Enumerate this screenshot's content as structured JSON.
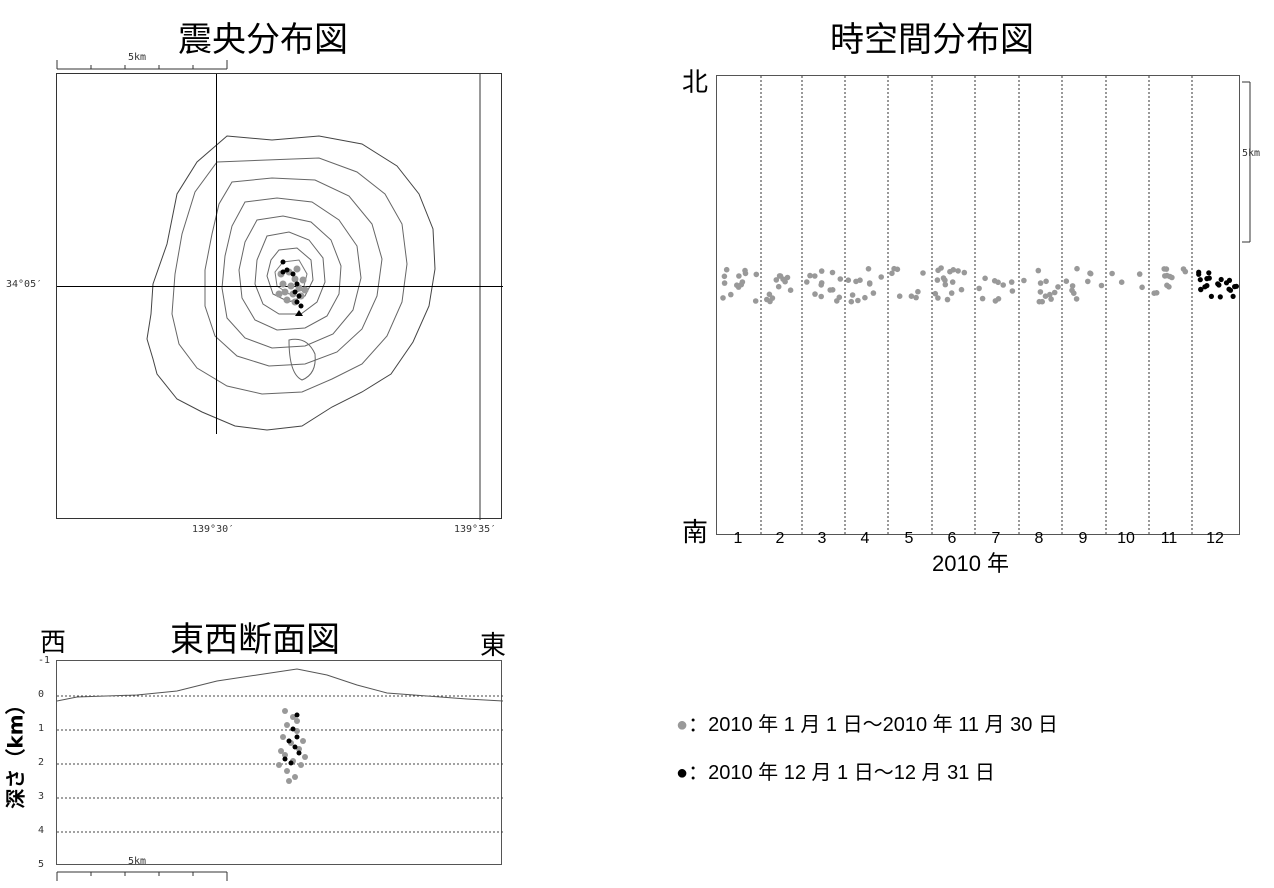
{
  "epicenter_map": {
    "title": "震央分布図",
    "scale_label": "5km",
    "lat_label": "34°05′",
    "lon_labels": [
      "139°30′",
      "139°35′"
    ]
  },
  "spacetime_chart": {
    "title": "時空間分布図",
    "north_label": "北",
    "south_label": "南",
    "scale_label": "5km",
    "year_label": "2010 年",
    "months": [
      "1",
      "2",
      "3",
      "4",
      "5",
      "6",
      "7",
      "8",
      "9",
      "10",
      "11",
      "12"
    ]
  },
  "cross_section": {
    "title": "東西断面図",
    "west_label": "西",
    "east_label": "東",
    "ylabel": "深さ（km）",
    "depth_ticks": [
      "-1",
      "0",
      "1",
      "2",
      "3",
      "4",
      "5"
    ],
    "scale_label": "5km"
  },
  "legend": {
    "gray_symbol": "●",
    "black_symbol": "●",
    "gray_color": "#999999",
    "black_color": "#000000",
    "gray_text": "：2010 年 1 月 1 日～2010 年 11 月 30 日",
    "black_text": "：2010 年 12 月 1 日～12 月 31 日"
  },
  "chart_data": [
    {
      "type": "scatter",
      "title": "時空間分布図",
      "xlabel": "2010 年",
      "categories": [
        "1",
        "2",
        "3",
        "4",
        "5",
        "6",
        "7",
        "8",
        "9",
        "10",
        "11",
        "12"
      ],
      "series": [
        {
          "period": "2010-01-01 to 2010-11-30",
          "color": "#999999",
          "count_month": [
            14,
            12,
            14,
            12,
            8,
            16,
            10,
            12,
            10,
            4,
            12,
            0
          ]
        },
        {
          "period": "2010-12-01 to 2010-12-31",
          "color": "#000000",
          "count_month": [
            0,
            0,
            0,
            0,
            0,
            0,
            0,
            0,
            0,
            0,
            0,
            22
          ]
        }
      ]
    },
    {
      "type": "scatter",
      "title": "東西断面図",
      "ylabel": "深さ（km）",
      "ylim": [
        -1,
        5
      ],
      "depth_range_gray_km": [
        0.3,
        2.5
      ],
      "depth_range_black_km": [
        0.5,
        2.1
      ]
    }
  ]
}
